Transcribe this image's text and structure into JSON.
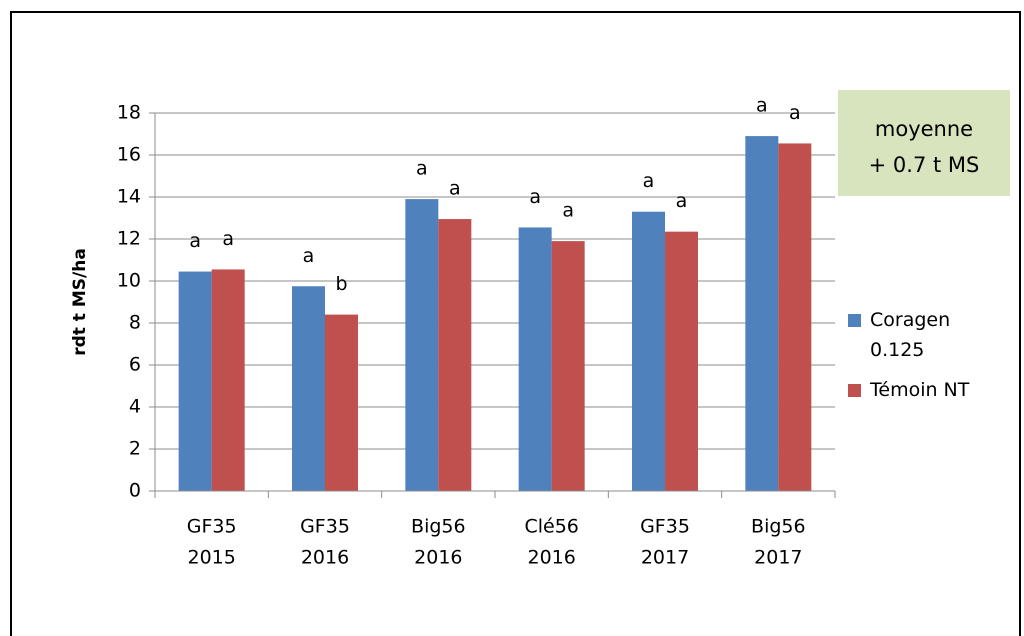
{
  "chart_data": {
    "type": "bar",
    "y_label": "rdt t MS/ha",
    "categories": [
      [
        "GF35",
        "2015"
      ],
      [
        "GF35",
        "2016"
      ],
      [
        "Big56",
        "2016"
      ],
      [
        "Clé56",
        "2016"
      ],
      [
        "GF35",
        "2017"
      ],
      [
        "Big56",
        "2017"
      ]
    ],
    "series": [
      {
        "name": "Coragen 0.125",
        "color": "#4f81bd",
        "values": [
          10.45,
          9.75,
          13.9,
          12.55,
          13.3,
          16.9
        ],
        "letters": [
          "a",
          "a",
          "a",
          "a",
          "a",
          "a"
        ]
      },
      {
        "name": "Témoin NT",
        "color": "#c0504d",
        "values": [
          10.55,
          8.4,
          12.95,
          11.9,
          12.35,
          16.55
        ],
        "letters": [
          "a",
          "b",
          "a",
          "a",
          "a",
          "a"
        ]
      }
    ],
    "ylim": [
      0,
      18
    ],
    "yticks": [
      0,
      2,
      4,
      6,
      8,
      10,
      12,
      14,
      16,
      18
    ],
    "grid": true,
    "annotation": [
      "moyenne",
      "+ 0.7 t MS"
    ],
    "annotation_color": "#d7e4bd",
    "legend": "right"
  }
}
